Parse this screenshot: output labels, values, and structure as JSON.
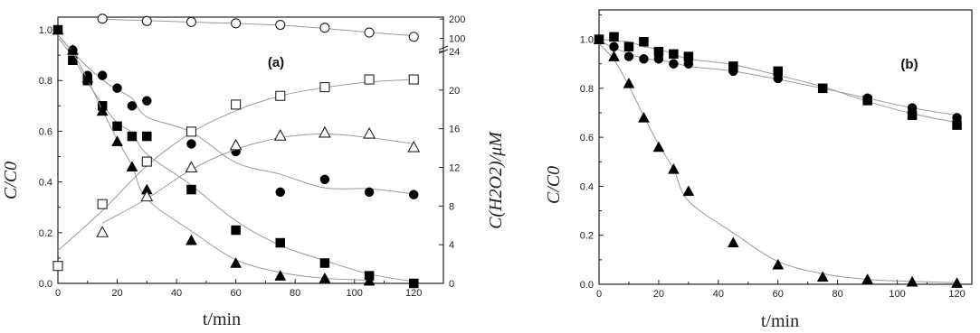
{
  "chart_data": [
    {
      "type": "scatter",
      "panel_label": "(a)",
      "xlabel": "t/min",
      "ylabel": "C/C0",
      "y2label": "C(H2O2)/μM",
      "xlim": [
        0,
        130
      ],
      "ylim": [
        0,
        1.05
      ],
      "y2lim": [
        0,
        24
      ],
      "y2_break_ticks": [
        "100",
        "200"
      ],
      "x_ticks": [
        "0",
        "20",
        "40",
        "60",
        "80",
        "100",
        "120"
      ],
      "y_ticks": [
        "0.0",
        "0.2",
        "0.4",
        "0.6",
        "0.8",
        "1.0"
      ],
      "y2_ticks": [
        "0",
        "4",
        "8",
        "12",
        "16",
        "20",
        "24"
      ],
      "series": [
        {
          "marker": "filled-square",
          "axis": "left",
          "x": [
            0,
            5,
            10,
            15,
            20,
            25,
            30,
            45,
            60,
            75,
            90,
            105,
            120
          ],
          "y": [
            1.0,
            0.88,
            0.8,
            0.7,
            0.62,
            0.58,
            0.58,
            0.37,
            0.21,
            0.16,
            0.08,
            0.03,
            0.0
          ]
        },
        {
          "marker": "filled-circle",
          "axis": "left",
          "x": [
            0,
            5,
            10,
            15,
            20,
            25,
            30,
            45,
            60,
            75,
            90,
            105,
            120
          ],
          "y": [
            1.0,
            0.92,
            0.82,
            0.82,
            0.77,
            0.7,
            0.72,
            0.55,
            0.52,
            0.36,
            0.41,
            0.36,
            0.35
          ]
        },
        {
          "marker": "filled-triangle",
          "axis": "left",
          "x": [
            0,
            5,
            10,
            15,
            20,
            25,
            30,
            45,
            60,
            75,
            90,
            105
          ],
          "y": [
            1.0,
            0.92,
            0.81,
            0.68,
            0.56,
            0.46,
            0.37,
            0.17,
            0.08,
            0.03,
            0.02,
            0.01
          ]
        },
        {
          "marker": "open-square",
          "axis": "right",
          "x": [
            0,
            15,
            30,
            45,
            60,
            75,
            90,
            105,
            120
          ],
          "y": [
            1.8,
            8.2,
            12.6,
            15.7,
            18.5,
            19.4,
            20.3,
            21.1,
            21.1
          ]
        },
        {
          "marker": "open-triangle",
          "axis": "right",
          "x": [
            15,
            30,
            45,
            60,
            75,
            90,
            105,
            120
          ],
          "y": [
            5.3,
            9.0,
            12.0,
            14.3,
            15.3,
            15.6,
            15.5,
            14.1
          ]
        },
        {
          "marker": "open-circle",
          "axis": "right-break",
          "x": [
            15,
            30,
            45,
            60,
            75,
            90,
            105,
            120
          ],
          "y": [
            202,
            190,
            185,
            178,
            170,
            155,
            130,
            108
          ]
        }
      ]
    },
    {
      "type": "scatter",
      "panel_label": "(b)",
      "xlabel": "t/min",
      "ylabel": "C/C0",
      "xlim": [
        0,
        125
      ],
      "ylim": [
        0,
        1.12
      ],
      "x_ticks": [
        "0",
        "20",
        "40",
        "60",
        "80",
        "100",
        "120"
      ],
      "y_ticks": [
        "0.0",
        "0.2",
        "0.4",
        "0.6",
        "0.8",
        "1.0"
      ],
      "series": [
        {
          "marker": "filled-square",
          "x": [
            0,
            5,
            10,
            15,
            20,
            25,
            30,
            45,
            60,
            75,
            90,
            105,
            120
          ],
          "y": [
            1.0,
            1.01,
            0.97,
            0.99,
            0.95,
            0.94,
            0.93,
            0.89,
            0.87,
            0.8,
            0.75,
            0.69,
            0.65
          ]
        },
        {
          "marker": "filled-circle",
          "x": [
            0,
            5,
            10,
            15,
            20,
            25,
            30,
            45,
            60,
            75,
            90,
            105,
            120
          ],
          "y": [
            1.0,
            0.97,
            0.93,
            0.92,
            0.92,
            0.9,
            0.9,
            0.87,
            0.84,
            0.8,
            0.76,
            0.72,
            0.68
          ]
        },
        {
          "marker": "filled-triangle",
          "x": [
            0,
            5,
            10,
            15,
            20,
            25,
            30,
            45,
            60,
            75,
            90,
            105,
            120
          ],
          "y": [
            1.0,
            0.93,
            0.82,
            0.68,
            0.56,
            0.47,
            0.38,
            0.17,
            0.08,
            0.03,
            0.02,
            0.01,
            0.005
          ]
        }
      ]
    }
  ]
}
